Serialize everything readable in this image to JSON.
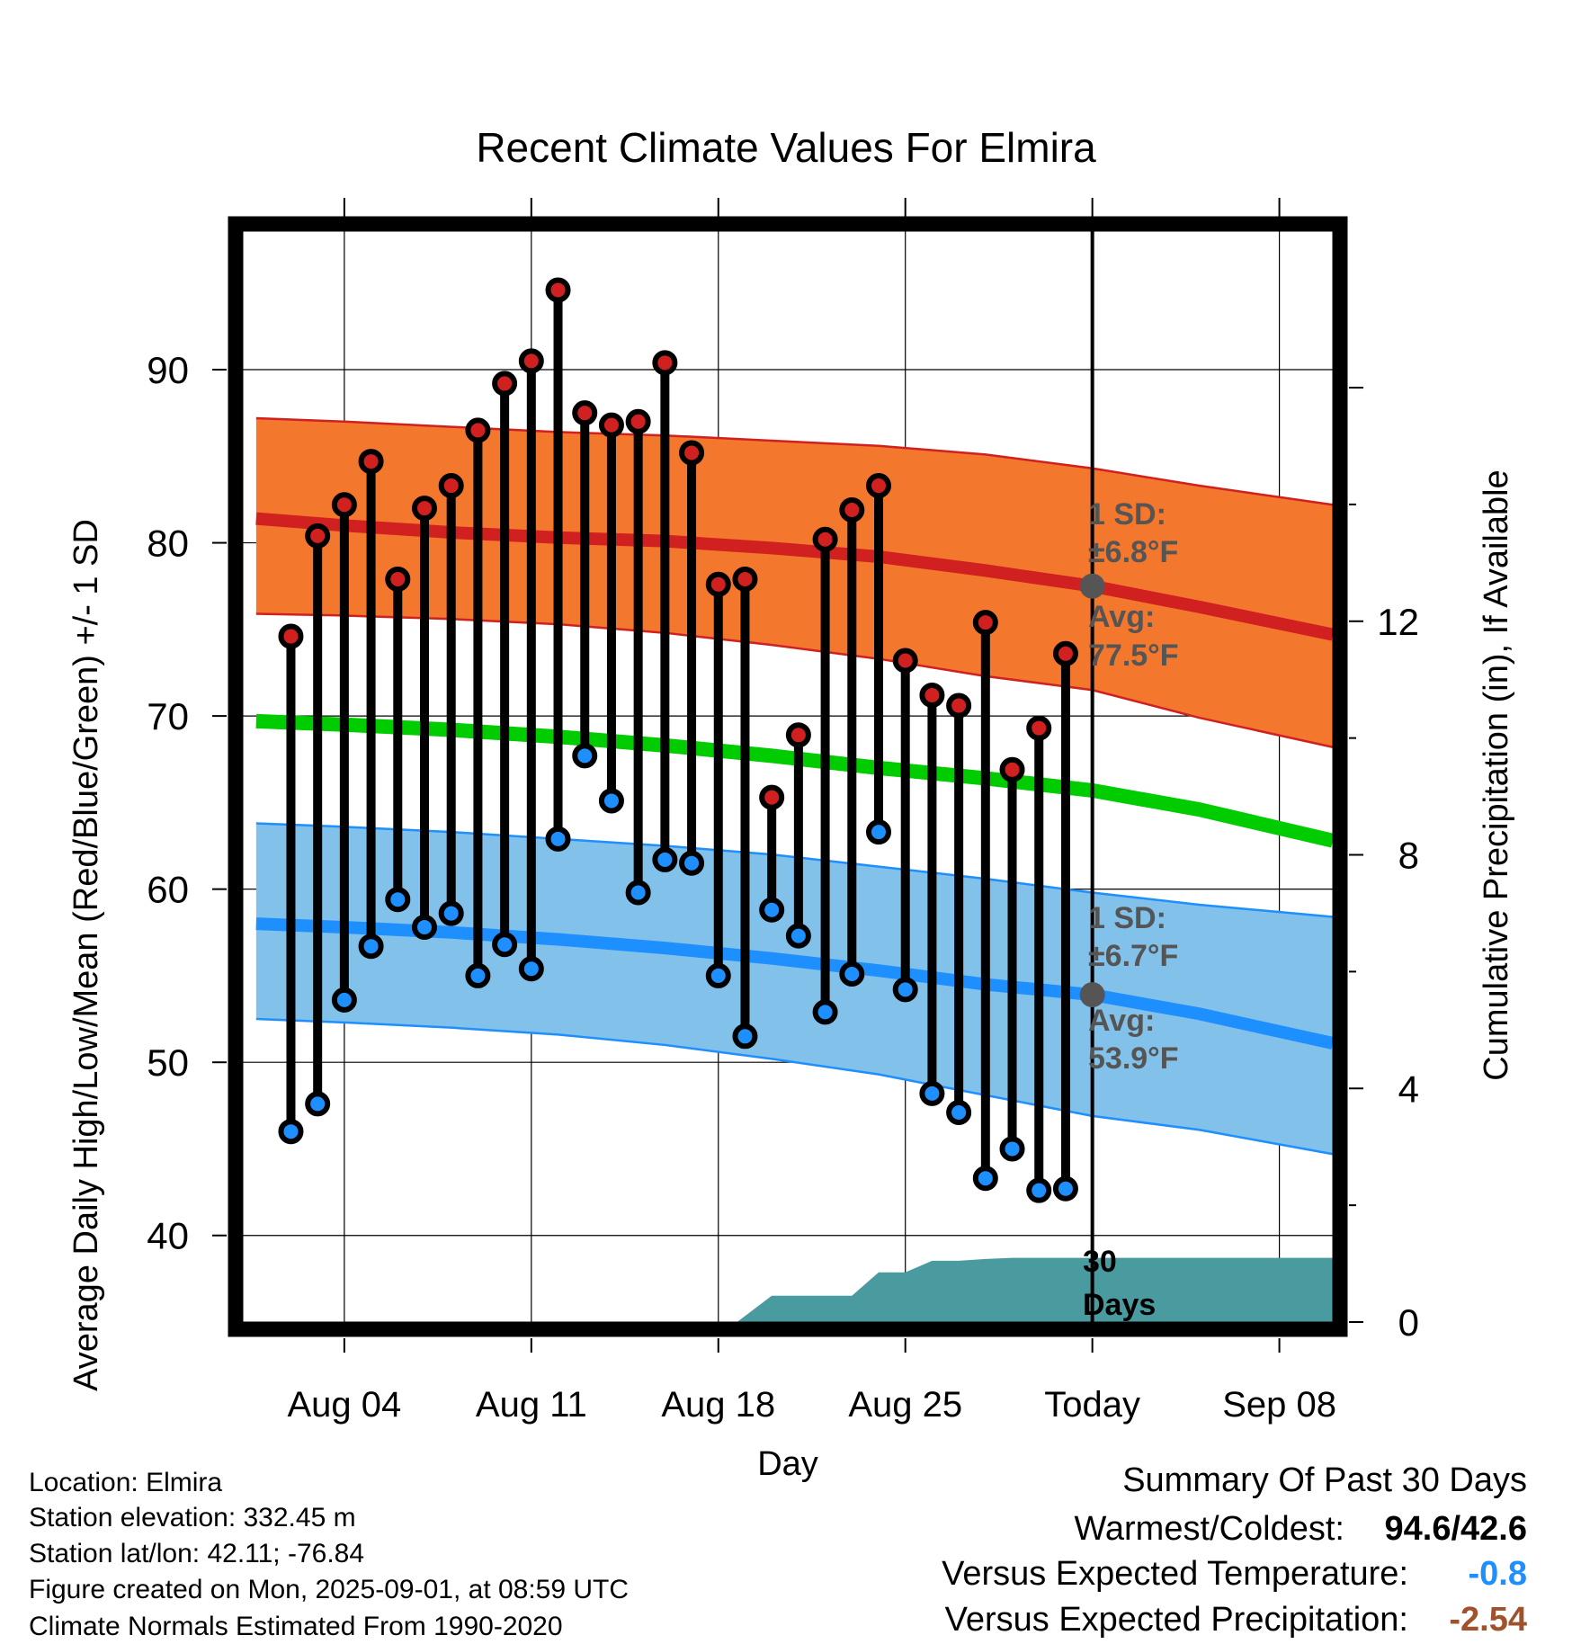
{
  "chart_data": {
    "type": "line",
    "title": "Recent Climate Values For Elmira",
    "xlabel": "Day",
    "ylabel": "Average Daily High/Low/Mean (Red/Blue/Green) +/- 1 SD",
    "ylabel_right": "Cumulative Precipitation (in), If Available",
    "x_ticks": [
      {
        "day": 4,
        "label": "Aug 04"
      },
      {
        "day": 11,
        "label": "Aug 11"
      },
      {
        "day": 18,
        "label": "Aug 18"
      },
      {
        "day": 25,
        "label": "Aug 25"
      },
      {
        "day": 32,
        "label": "Today"
      },
      {
        "day": 39,
        "label": "Sep 08"
      }
    ],
    "x_range": [
      0.2,
      41.0
    ],
    "y_ticks": [
      40,
      50,
      60,
      70,
      80,
      90
    ],
    "ylim": [
      35,
      98
    ],
    "y2_ticks": [
      0,
      4,
      8,
      12
    ],
    "y2lim": [
      0,
      18.68
    ],
    "today_day": 32,
    "daily": [
      {
        "day": 2,
        "high": 74.6,
        "low": 46.0
      },
      {
        "day": 3,
        "high": 80.4,
        "low": 47.6
      },
      {
        "day": 4,
        "high": 82.2,
        "low": 53.6
      },
      {
        "day": 5,
        "high": 84.7,
        "low": 56.7
      },
      {
        "day": 6,
        "high": 77.9,
        "low": 59.4
      },
      {
        "day": 7,
        "high": 82.0,
        "low": 57.8
      },
      {
        "day": 8,
        "high": 83.3,
        "low": 58.6
      },
      {
        "day": 9,
        "high": 86.5,
        "low": 55.0
      },
      {
        "day": 10,
        "high": 89.2,
        "low": 56.8
      },
      {
        "day": 11,
        "high": 90.5,
        "low": 55.4
      },
      {
        "day": 12,
        "high": 94.6,
        "low": 62.9
      },
      {
        "day": 13,
        "high": 87.5,
        "low": 67.7
      },
      {
        "day": 14,
        "high": 86.8,
        "low": 65.1
      },
      {
        "day": 15,
        "high": 87.0,
        "low": 59.8
      },
      {
        "day": 16,
        "high": 90.4,
        "low": 61.7
      },
      {
        "day": 17,
        "high": 85.2,
        "low": 61.5
      },
      {
        "day": 18,
        "high": 77.6,
        "low": 55.0
      },
      {
        "day": 19,
        "high": 77.9,
        "low": 51.5
      },
      {
        "day": 20,
        "high": 65.3,
        "low": 58.8
      },
      {
        "day": 21,
        "high": 68.9,
        "low": 57.3
      },
      {
        "day": 22,
        "high": 80.2,
        "low": 52.9
      },
      {
        "day": 23,
        "high": 81.9,
        "low": 55.1
      },
      {
        "day": 24,
        "high": 83.3,
        "low": 63.3
      },
      {
        "day": 25,
        "high": 73.2,
        "low": 54.2
      },
      {
        "day": 26,
        "high": 71.2,
        "low": 48.2
      },
      {
        "day": 27,
        "high": 70.6,
        "low": 47.1
      },
      {
        "day": 28,
        "high": 75.4,
        "low": 43.3
      },
      {
        "day": 29,
        "high": 66.9,
        "low": 45.0
      },
      {
        "day": 30,
        "high": 69.3,
        "low": 42.6
      },
      {
        "day": 31,
        "high": 73.6,
        "low": 42.7
      }
    ],
    "normals": {
      "days": [
        0.7,
        4,
        8,
        12,
        16,
        20,
        24,
        28,
        32,
        36,
        41
      ],
      "high_mean": [
        81.4,
        81.0,
        80.6,
        80.3,
        80.1,
        79.7,
        79.2,
        78.4,
        77.5,
        76.3,
        74.7
      ],
      "high_upper": [
        87.2,
        87.0,
        86.7,
        86.4,
        86.2,
        85.9,
        85.6,
        85.1,
        84.3,
        83.3,
        82.2
      ],
      "high_lower": [
        75.9,
        75.8,
        75.6,
        75.3,
        74.8,
        74.1,
        73.3,
        72.3,
        71.5,
        69.9,
        68.2
      ],
      "low_mean": [
        58.0,
        57.8,
        57.5,
        57.1,
        56.6,
        56.0,
        55.3,
        54.5,
        53.9,
        52.8,
        51.1
      ],
      "low_upper": [
        63.8,
        63.6,
        63.3,
        62.9,
        62.5,
        62.0,
        61.3,
        60.6,
        59.8,
        59.1,
        58.4
      ],
      "low_lower": [
        52.5,
        52.3,
        52.0,
        51.6,
        51.0,
        50.2,
        49.3,
        48.1,
        46.9,
        46.1,
        44.7
      ],
      "mean": [
        69.7,
        69.5,
        69.2,
        68.8,
        68.3,
        67.7,
        67.0,
        66.4,
        65.7,
        64.6,
        62.8
      ]
    },
    "precip": {
      "days": [
        18.7,
        20.0,
        21.0,
        22.0,
        23.0,
        24.0,
        25.0,
        26.0,
        27.0,
        28.0,
        29.0,
        30.0,
        31.0,
        32.0,
        41.0
      ],
      "cumulative": [
        0.0,
        0.45,
        0.45,
        0.45,
        0.45,
        0.85,
        0.85,
        1.05,
        1.05,
        1.08,
        1.1,
        1.1,
        1.1,
        1.1,
        1.1
      ]
    },
    "annotations": {
      "high_sd_label": "1 SD:",
      "high_sd_value": "±6.8°F",
      "high_avg_label": "Avg:",
      "high_avg_value": "77.5°F",
      "low_sd_label": "1 SD:",
      "low_sd_value": "±6.7°F",
      "low_avg_label": "Avg:",
      "low_avg_value": "53.9°F",
      "days_count": "30",
      "days_word": "Days"
    },
    "colors": {
      "high_band": "#F4772E",
      "high_line": "#D02020",
      "low_band": "#82C1E9",
      "low_line": "#1E8FFF",
      "mean_line": "#00CC00",
      "precip": "#4A9BA0",
      "high_dot": "#D02020",
      "low_dot": "#1E8FFF",
      "annotation_text": "#555555"
    }
  },
  "footer": {
    "location": "Location: Elmira",
    "elevation": "Station elevation: 332.45 m",
    "latlon": "Station lat/lon: 42.11; -76.84",
    "created": "Figure created on Mon, 2025-09-01, at 08:59 UTC",
    "normals": "Climate Normals Estimated From 1990-2020"
  },
  "summary": {
    "title": "Summary Of Past 30 Days",
    "warmest_label": "Warmest/Coldest:",
    "warmest_value": "94.6/42.6",
    "temp_label": "Versus Expected Temperature:",
    "temp_value": "-0.8",
    "temp_color": "#1E8FFF",
    "precip_label": "Versus Expected Precipitation:",
    "precip_value": "-2.54",
    "precip_color": "#A0522D"
  }
}
